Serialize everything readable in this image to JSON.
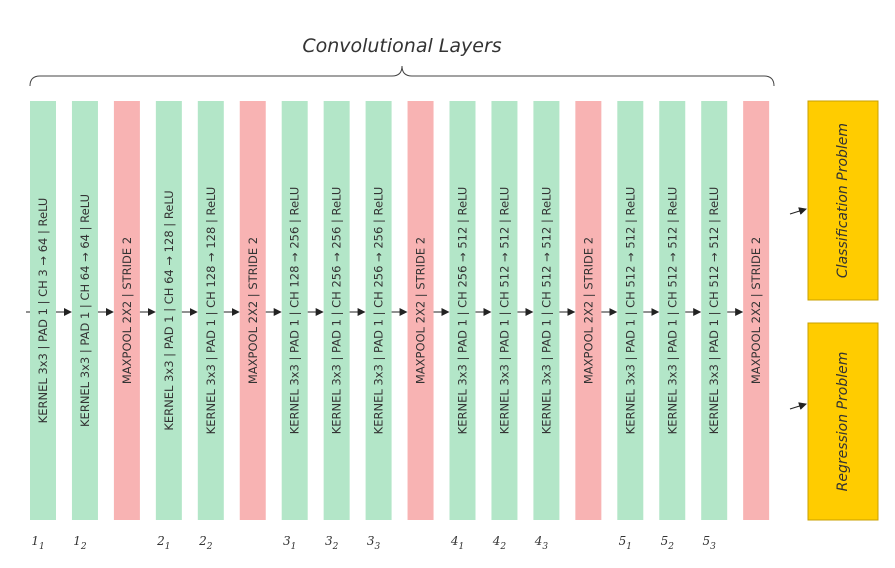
{
  "title": "Convolutional Layers",
  "colors": {
    "conv": "#b3e6c8",
    "pool": "#f8b3b3",
    "output": "#ffcc00",
    "output_border": "#c9a000",
    "text": "#333333",
    "line": "#222222"
  },
  "layers": [
    {
      "type": "conv",
      "label": "KERNEL 3x3 | PAD 1 | CH  3 → 64 | ReLU",
      "index_main": "1",
      "index_sub": "1"
    },
    {
      "type": "conv",
      "label": "KERNEL 3x3 | PAD 1 | CH 64 → 64 | ReLU",
      "index_main": "1",
      "index_sub": "2"
    },
    {
      "type": "pool",
      "label": "MAXPOOL 2X2 | STRIDE 2",
      "index_main": "",
      "index_sub": ""
    },
    {
      "type": "conv",
      "label": "KERNEL 3x3 | PAD 1 | CH 64 → 128 | ReLU",
      "index_main": "2",
      "index_sub": "1"
    },
    {
      "type": "conv",
      "label": "KERNEL 3x3 | PAD 1 | CH  128 → 128 | ReLU",
      "index_main": "2",
      "index_sub": "2"
    },
    {
      "type": "pool",
      "label": "MAXPOOL 2X2 | STRIDE 2",
      "index_main": "",
      "index_sub": ""
    },
    {
      "type": "conv",
      "label": "KERNEL 3x3 | PAD 1 | CH  128 → 256 | ReLU",
      "index_main": "3",
      "index_sub": "1"
    },
    {
      "type": "conv",
      "label": "KERNEL 3x3 | PAD 1 | CH  256 → 256 | ReLU",
      "index_main": "3",
      "index_sub": "2"
    },
    {
      "type": "conv",
      "label": "KERNEL 3x3 | PAD 1 | CH  256 → 256 | ReLU",
      "index_main": "3",
      "index_sub": "3"
    },
    {
      "type": "pool",
      "label": "MAXPOOL 2X2 | STRIDE 2",
      "index_main": "",
      "index_sub": ""
    },
    {
      "type": "conv",
      "label": "KERNEL 3x3 | PAD 1 | CH  256 → 512 | ReLU",
      "index_main": "4",
      "index_sub": "1"
    },
    {
      "type": "conv",
      "label": "KERNEL 3x3 | PAD 1 | CH  512 → 512 | ReLU",
      "index_main": "4",
      "index_sub": "2"
    },
    {
      "type": "conv",
      "label": "KERNEL 3x3 | PAD 1 | CH  512 → 512 | ReLU",
      "index_main": "4",
      "index_sub": "3"
    },
    {
      "type": "pool",
      "label": "MAXPOOL 2X2 | STRIDE 2",
      "index_main": "",
      "index_sub": ""
    },
    {
      "type": "conv",
      "label": "KERNEL 3x3 | PAD 1 | CH  512 → 512 | ReLU",
      "index_main": "5",
      "index_sub": "1"
    },
    {
      "type": "conv",
      "label": "KERNEL 3x3 | PAD 1 | CH  512 → 512 | ReLU",
      "index_main": "5",
      "index_sub": "2"
    },
    {
      "type": "conv",
      "label": "KERNEL 3x3 | PAD 1 | CH  512 → 512 | ReLU",
      "index_main": "5",
      "index_sub": "3"
    },
    {
      "type": "pool",
      "label": "MAXPOOL 2X2 | STRIDE 2",
      "index_main": "",
      "index_sub": ""
    }
  ],
  "outputs": [
    {
      "label": "Classification Problem"
    },
    {
      "label": "Regression Problem"
    }
  ]
}
